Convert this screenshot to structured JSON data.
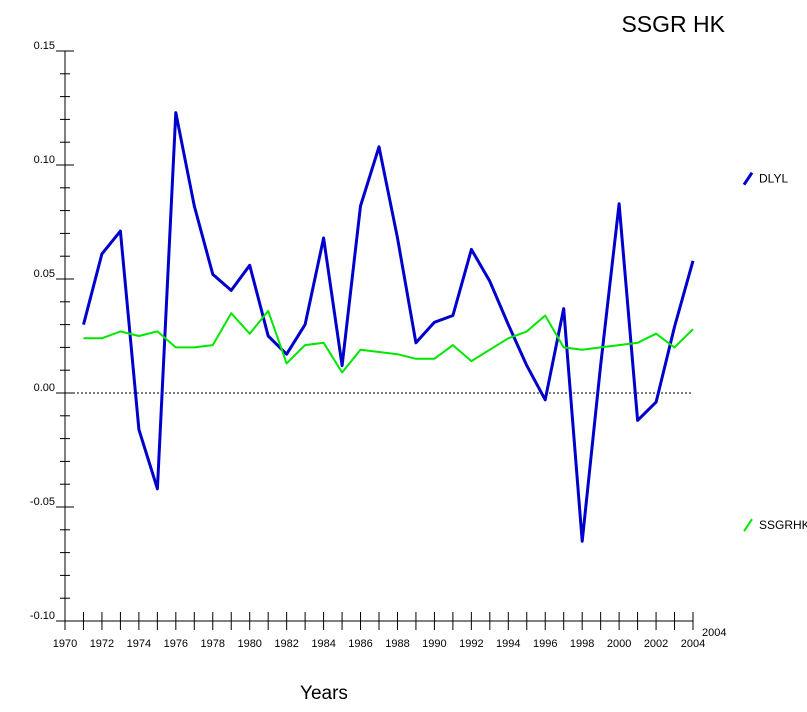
{
  "chart_data": {
    "type": "line",
    "title": "SSGR HK",
    "xlabel": "Years",
    "ylabel": "",
    "x_tick_labels": [
      "1970",
      "1972",
      "1974",
      "1976",
      "1978",
      "1980",
      "1982",
      "1984",
      "1986",
      "1988",
      "1990",
      "1992",
      "1994",
      "1996",
      "1998",
      "2000",
      "2002",
      "2004"
    ],
    "x_end_label": "2004",
    "y_tick_labels": [
      "0.15",
      "0.10",
      "0.05",
      "0.00",
      "-0.05",
      "-0.10"
    ],
    "xlim": [
      1970,
      2004
    ],
    "ylim": [
      -0.1,
      0.15
    ],
    "y_major_ticks": [
      -0.1,
      -0.05,
      0.0,
      0.05,
      0.1,
      0.15
    ],
    "zero_line": true,
    "grid": false,
    "legend_position": "right",
    "x": [
      1971,
      1972,
      1973,
      1974,
      1975,
      1976,
      1977,
      1978,
      1979,
      1980,
      1981,
      1982,
      1983,
      1984,
      1985,
      1986,
      1987,
      1988,
      1989,
      1990,
      1991,
      1992,
      1993,
      1994,
      1995,
      1996,
      1997,
      1998,
      1999,
      2000,
      2001,
      2002,
      2003,
      2004
    ],
    "series": [
      {
        "name": "DLYL",
        "color": "#0000cc",
        "values": [
          0.03,
          0.061,
          0.071,
          -0.016,
          -0.042,
          0.123,
          0.082,
          0.052,
          0.045,
          0.056,
          0.025,
          0.017,
          0.03,
          0.068,
          0.012,
          0.082,
          0.108,
          0.068,
          0.022,
          0.031,
          0.034,
          0.063,
          0.049,
          0.03,
          0.012,
          -0.003,
          0.037,
          -0.065,
          0.012,
          0.083,
          -0.012,
          -0.004,
          0.029,
          0.058
        ]
      },
      {
        "name": "SSGRHK",
        "color": "#00e600",
        "values": [
          0.024,
          0.024,
          0.027,
          0.025,
          0.027,
          0.02,
          0.02,
          0.021,
          0.035,
          0.026,
          0.036,
          0.013,
          0.021,
          0.022,
          0.009,
          0.019,
          0.018,
          0.017,
          0.015,
          0.015,
          0.021,
          0.014,
          0.019,
          0.024,
          0.027,
          0.034,
          0.02,
          0.019,
          0.02,
          0.021,
          0.022,
          0.026,
          0.02,
          0.028
        ]
      }
    ]
  }
}
